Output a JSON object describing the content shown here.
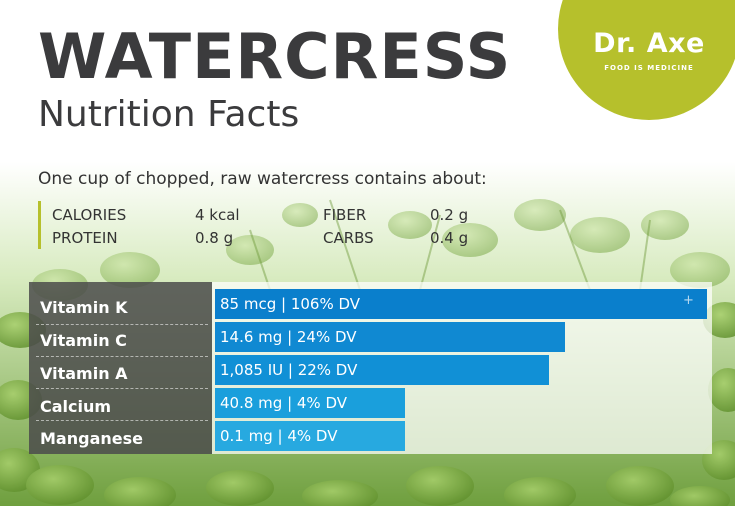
{
  "logo": {
    "name": "Dr. Axe",
    "tagline": "FOOD IS MEDICINE",
    "color": "#b6c02c"
  },
  "title": "WATERCRESS",
  "subtitle": "Nutrition Facts",
  "intro": "One cup of chopped, raw watercress contains about:",
  "facts": [
    {
      "label": "CALORIES",
      "value": "4 kcal"
    },
    {
      "label": "PROTEIN",
      "value": "0.8 g"
    },
    {
      "label": "FIBER",
      "value": "0.2 g"
    },
    {
      "label": "CARBS",
      "value": "0.4 g"
    }
  ],
  "nutrients": [
    {
      "name": "Vitamin K",
      "amount": "85 mcg | 106% DV",
      "dv_percent": 106,
      "color": "#0a7fcc"
    },
    {
      "name": "Vitamin C",
      "amount": "14.6 mg | 24% DV",
      "dv_percent": 24,
      "color": "#1089d2"
    },
    {
      "name": "Vitamin A",
      "amount": "1,085 IU | 22% DV",
      "dv_percent": 22,
      "color": "#1190d6"
    },
    {
      "name": "Calcium",
      "amount": "40.8 mg | 4% DV",
      "dv_percent": 4,
      "color": "#1a9fdc"
    },
    {
      "name": "Manganese",
      "amount": "0.1 mg | 4% DV",
      "dv_percent": 4,
      "color": "#27a9e0"
    }
  ],
  "plus_icon": "plus-icon"
}
